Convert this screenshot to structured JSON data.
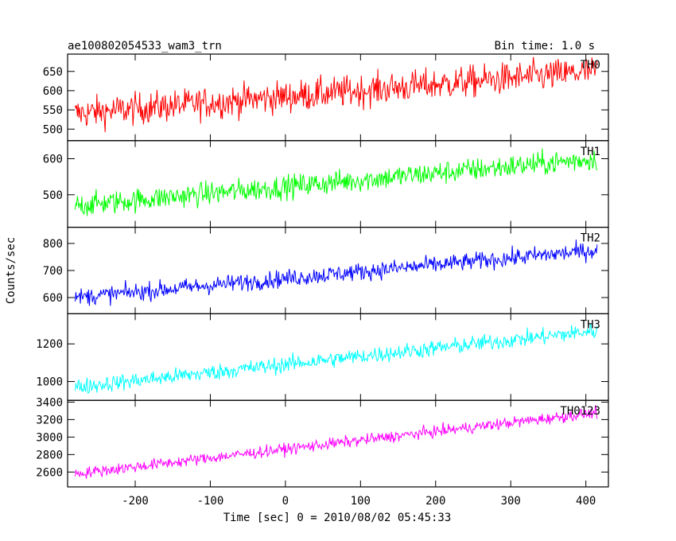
{
  "chart_data": {
    "type": "line",
    "title": "ae100802054533_wam3_trn",
    "subtitle": "Bin time: 1.0 s",
    "xlabel": "Time [sec] 0 = 2010/08/02 05:45:33",
    "ylabel": "Counts/sec",
    "xlim": [
      -290,
      430
    ],
    "x_range": [
      -280,
      415
    ],
    "x_ticks": [
      -200,
      -100,
      0,
      100,
      200,
      300,
      400
    ],
    "panels": [
      {
        "name": "TH0",
        "color": "#ff0000",
        "ylim": [
          470,
          695
        ],
        "y_ticks": [
          500,
          550,
          600,
          650
        ],
        "trend_start": 540,
        "trend_end": 650,
        "noise": 38
      },
      {
        "name": "TH1",
        "color": "#00ff00",
        "ylim": [
          410,
          650
        ],
        "y_ticks": [
          500,
          600
        ],
        "trend_start": 470,
        "trend_end": 600,
        "noise": 30
      },
      {
        "name": "TH2",
        "color": "#0000ff",
        "ylim": [
          540,
          860
        ],
        "y_ticks": [
          600,
          700,
          800
        ],
        "trend_start": 600,
        "trend_end": 775,
        "noise": 30
      },
      {
        "name": "TH3",
        "color": "#00ffff",
        "ylim": [
          900,
          1360
        ],
        "y_ticks": [
          1000,
          1200
        ],
        "trend_start": 970,
        "trend_end": 1270,
        "noise": 40
      },
      {
        "name": "TH0123",
        "color": "#ff00ff",
        "ylim": [
          2430,
          3420
        ],
        "y_ticks": [
          2600,
          2800,
          3000,
          3200,
          3400
        ],
        "trend_start": 2580,
        "trend_end": 3280,
        "noise": 60
      }
    ]
  }
}
